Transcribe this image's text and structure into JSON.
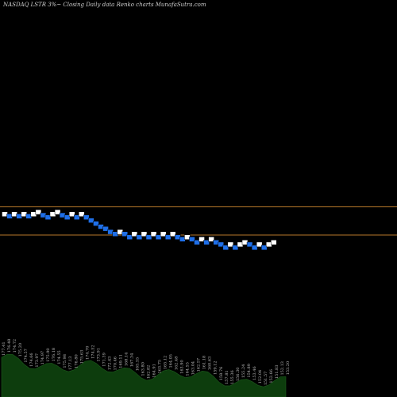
{
  "title": "NASDAQ LSTR 3%~  Closing Daily data  Renko  charts MunafaSutra.com",
  "colors": {
    "background": "#000000",
    "up_brick": "#ffffff",
    "down_brick": "#1f6fe8",
    "reference_line": "#b8782a",
    "volume_fill": "#0d3d0d"
  },
  "chart_data": {
    "type": "renko",
    "title": "NASDAQ LSTR 3%~  Closing Daily data  Renko  charts MunafaSutra.com",
    "brick_percent": 3,
    "reference_lines": [
      212,
      185
    ],
    "ylim": [
      30,
      410
    ],
    "bricks": [
      {
        "level": 205,
        "dir": "up"
      },
      {
        "level": 203,
        "dir": "down"
      },
      {
        "level": 205,
        "dir": "up"
      },
      {
        "level": 203,
        "dir": "down"
      },
      {
        "level": 205,
        "dir": "up"
      },
      {
        "level": 203,
        "dir": "down"
      },
      {
        "level": 205,
        "dir": "up"
      },
      {
        "level": 207,
        "dir": "up"
      },
      {
        "level": 204,
        "dir": "down"
      },
      {
        "level": 202,
        "dir": "down"
      },
      {
        "level": 205,
        "dir": "up"
      },
      {
        "level": 207,
        "dir": "up"
      },
      {
        "level": 204,
        "dir": "down"
      },
      {
        "level": 202,
        "dir": "down"
      },
      {
        "level": 205,
        "dir": "up"
      },
      {
        "level": 202,
        "dir": "down"
      },
      {
        "level": 205,
        "dir": "up"
      },
      {
        "level": 202,
        "dir": "down"
      },
      {
        "level": 199,
        "dir": "down"
      },
      {
        "level": 196,
        "dir": "down"
      },
      {
        "level": 193,
        "dir": "down"
      },
      {
        "level": 191,
        "dir": "down"
      },
      {
        "level": 188,
        "dir": "down"
      },
      {
        "level": 186,
        "dir": "down"
      },
      {
        "level": 188,
        "dir": "up"
      },
      {
        "level": 186,
        "dir": "down"
      },
      {
        "level": 183,
        "dir": "down"
      },
      {
        "level": 186,
        "dir": "up"
      },
      {
        "level": 183,
        "dir": "down"
      },
      {
        "level": 186,
        "dir": "up"
      },
      {
        "level": 183,
        "dir": "down"
      },
      {
        "level": 186,
        "dir": "up"
      },
      {
        "level": 183,
        "dir": "down"
      },
      {
        "level": 186,
        "dir": "up"
      },
      {
        "level": 183,
        "dir": "down"
      },
      {
        "level": 186,
        "dir": "up"
      },
      {
        "level": 183,
        "dir": "down"
      },
      {
        "level": 181,
        "dir": "down"
      },
      {
        "level": 183,
        "dir": "up"
      },
      {
        "level": 181,
        "dir": "down"
      },
      {
        "level": 178,
        "dir": "down"
      },
      {
        "level": 181,
        "dir": "up"
      },
      {
        "level": 178,
        "dir": "down"
      },
      {
        "level": 181,
        "dir": "up"
      },
      {
        "level": 178,
        "dir": "down"
      },
      {
        "level": 176,
        "dir": "down"
      },
      {
        "level": 173,
        "dir": "down"
      },
      {
        "level": 176,
        "dir": "up"
      },
      {
        "level": 173,
        "dir": "down"
      },
      {
        "level": 176,
        "dir": "up"
      },
      {
        "level": 178,
        "dir": "up"
      },
      {
        "level": 176,
        "dir": "down"
      },
      {
        "level": 173,
        "dir": "down"
      },
      {
        "level": 176,
        "dir": "up"
      },
      {
        "level": 173,
        "dir": "down"
      },
      {
        "level": 176,
        "dir": "up"
      },
      {
        "level": 178,
        "dir": "up"
      }
    ],
    "volume_labels": [
      "177.41",
      "176.48",
      "174.72",
      "175.20",
      "174.57",
      "174.66",
      "173.97",
      "174.97",
      "175.90",
      "176.18",
      "174.55",
      "175.98",
      "177.13",
      "176.80",
      "175.63",
      "174.70",
      "174.52",
      "173.91",
      "171.39",
      "172.43",
      "170.46",
      "169.11",
      "168.14",
      "167.34",
      "165.55",
      "163.80",
      "162.82",
      "164.91",
      "163.75",
      "165.12",
      "164.05",
      "162.48",
      "163.90",
      "164.55",
      "163.04",
      "162.57",
      "161.18",
      "160.63",
      "159.12",
      "158.76",
      "157.81",
      "155.36",
      "156.30",
      "155.24",
      "154.89",
      "153.46",
      "152.04",
      "151.57",
      "152.66",
      "151.83",
      "152.13",
      "153.20"
    ]
  }
}
